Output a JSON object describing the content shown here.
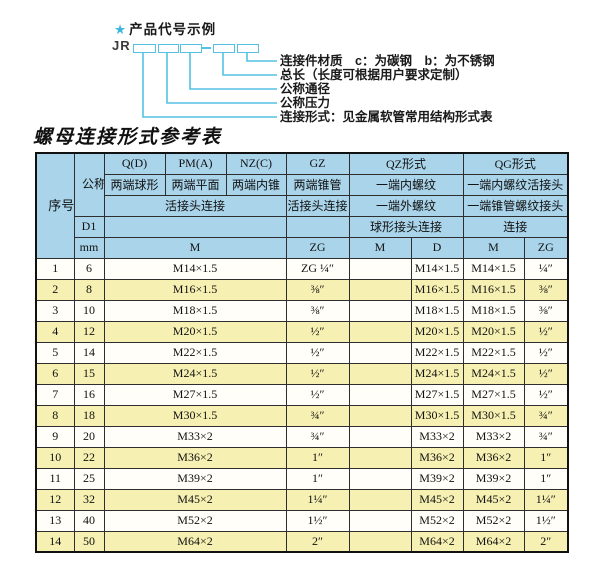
{
  "colors": {
    "accent_cyan": "#55c1e4",
    "header_blue": "#a9d4ea",
    "row_yellow": "#f6f0b2",
    "row_white": "#fffef8",
    "border_dark": "#2e2e2e"
  },
  "diagram": {
    "star": "★",
    "title": "产品代号示例",
    "code_prefix": "JR",
    "labels": [
      "连接件材质　c：为碳钢　b：为不锈钢",
      "总长（长度可根据用户要求定制）",
      "公称通径",
      "公称压力",
      "连接形式：见金属软管常用结构形式表"
    ]
  },
  "table": {
    "title": "螺母连接形式参考表",
    "header": {
      "serial": "序号",
      "diameter": "公称通径",
      "d1": "D1",
      "mm": "mm",
      "q_code": "Q(D)",
      "q_type": "两端球形",
      "pm_code": "PM(A)",
      "pm_type": "两端平面",
      "nz_code": "NZ(C)",
      "nz_type": "两端内锥",
      "qpn_conn": "活接头连接",
      "qpn_unit": "M",
      "gz_code": "GZ",
      "gz_type": "两端锥管",
      "gz_conn": "活接头连接",
      "gz_unit": "ZG",
      "qz_code": "QZ形式",
      "qz_row2": "一端内螺纹",
      "qz_row3": "一端外螺纹",
      "qz_row4": "球形接头连接",
      "qz_unit1": "M",
      "qz_unit2": "D",
      "qg_code": "QG形式",
      "qg_row2": "一端内螺纹活接头",
      "qg_row3": "一端锥管螺纹接头",
      "qg_row4": "连接",
      "qg_unit1": "M",
      "qg_unit2": "ZG"
    },
    "rows": [
      {
        "no": "1",
        "dn": "6",
        "m": "M14×1.5",
        "zg": "ZG ¼″",
        "qz_m": "",
        "qz_d": "M14×1.5",
        "qg_m": "M14×1.5",
        "qg_zg": "¼″"
      },
      {
        "no": "2",
        "dn": "8",
        "m": "M16×1.5",
        "zg": "⅜″",
        "qz_m": "",
        "qz_d": "M16×1.5",
        "qg_m": "M16×1.5",
        "qg_zg": "⅜″"
      },
      {
        "no": "3",
        "dn": "10",
        "m": "M18×1.5",
        "zg": "⅜″",
        "qz_m": "",
        "qz_d": "M18×1.5",
        "qg_m": "M18×1.5",
        "qg_zg": "⅜″"
      },
      {
        "no": "4",
        "dn": "12",
        "m": "M20×1.5",
        "zg": "½″",
        "qz_m": "",
        "qz_d": "M20×1.5",
        "qg_m": "M20×1.5",
        "qg_zg": "½″"
      },
      {
        "no": "5",
        "dn": "14",
        "m": "M22×1.5",
        "zg": "½″",
        "qz_m": "",
        "qz_d": "M22×1.5",
        "qg_m": "M22×1.5",
        "qg_zg": "½″"
      },
      {
        "no": "6",
        "dn": "15",
        "m": "M24×1.5",
        "zg": "½″",
        "qz_m": "",
        "qz_d": "M24×1.5",
        "qg_m": "M24×1.5",
        "qg_zg": "½″"
      },
      {
        "no": "7",
        "dn": "16",
        "m": "M27×1.5",
        "zg": "½″",
        "qz_m": "",
        "qz_d": "M27×1.5",
        "qg_m": "M27×1.5",
        "qg_zg": "½″"
      },
      {
        "no": "8",
        "dn": "18",
        "m": "M30×1.5",
        "zg": "¾″",
        "qz_m": "",
        "qz_d": "M30×1.5",
        "qg_m": "M30×1.5",
        "qg_zg": "¾″"
      },
      {
        "no": "9",
        "dn": "20",
        "m": "M33×2",
        "zg": "¾″",
        "qz_m": "",
        "qz_d": "M33×2",
        "qg_m": "M33×2",
        "qg_zg": "¾″"
      },
      {
        "no": "10",
        "dn": "22",
        "m": "M36×2",
        "zg": "1″",
        "qz_m": "",
        "qz_d": "M36×2",
        "qg_m": "M36×2",
        "qg_zg": "1″"
      },
      {
        "no": "11",
        "dn": "25",
        "m": "M39×2",
        "zg": "1″",
        "qz_m": "",
        "qz_d": "M39×2",
        "qg_m": "M39×2",
        "qg_zg": "1″"
      },
      {
        "no": "12",
        "dn": "32",
        "m": "M45×2",
        "zg": "1¼″",
        "qz_m": "",
        "qz_d": "M45×2",
        "qg_m": "M45×2",
        "qg_zg": "1¼″"
      },
      {
        "no": "13",
        "dn": "40",
        "m": "M52×2",
        "zg": "1½″",
        "qz_m": "",
        "qz_d": "M52×2",
        "qg_m": "M52×2",
        "qg_zg": "1½″"
      },
      {
        "no": "14",
        "dn": "50",
        "m": "M64×2",
        "zg": "2″",
        "qz_m": "",
        "qz_d": "M64×2",
        "qg_m": "M64×2",
        "qg_zg": "2″"
      }
    ]
  }
}
